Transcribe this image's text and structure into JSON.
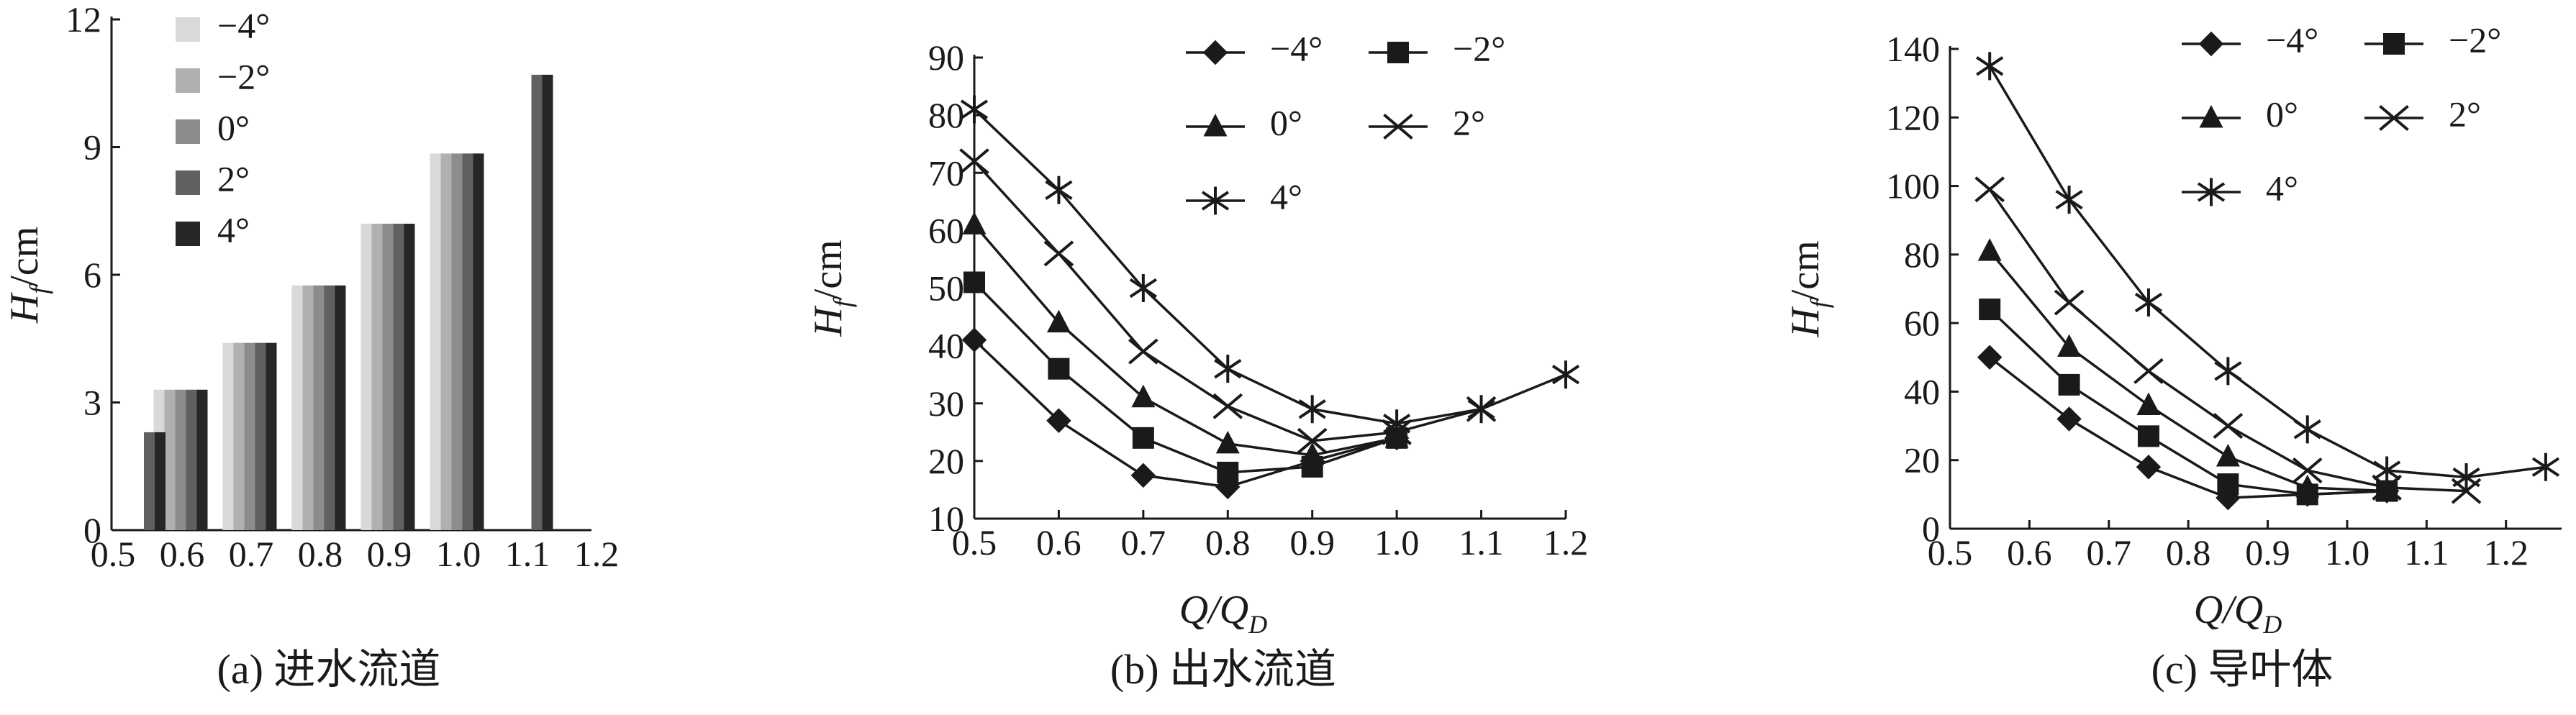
{
  "chart_data": [
    {
      "type": "bar",
      "caption": "(a) 进水流道",
      "ylabel": [
        "H",
        "f",
        "/cm"
      ],
      "categories": [
        "0.5",
        "0.6",
        "0.7",
        "0.8",
        "0.9",
        "1.0",
        "1.1",
        "1.2"
      ],
      "series": [
        {
          "name": "−4°",
          "color": "#d9d9d9",
          "values": [
            null,
            3.3,
            4.4,
            5.75,
            7.2,
            8.85,
            null,
            null
          ]
        },
        {
          "name": "−2°",
          "color": "#b0b0b0",
          "values": [
            null,
            3.3,
            4.4,
            5.75,
            7.2,
            8.85,
            null,
            null
          ]
        },
        {
          "name": "0°",
          "color": "#8c8c8c",
          "values": [
            null,
            3.3,
            4.4,
            5.75,
            7.2,
            8.85,
            null,
            null
          ]
        },
        {
          "name": "2°",
          "color": "#606060",
          "values": [
            2.3,
            3.3,
            4.4,
            5.75,
            7.2,
            8.85,
            10.7,
            null
          ]
        },
        {
          "name": "4°",
          "color": "#262626",
          "values": [
            2.3,
            3.3,
            4.4,
            5.75,
            7.2,
            8.85,
            10.7,
            null
          ]
        }
      ],
      "ylim": [
        0,
        12
      ],
      "yticks": [
        0,
        3,
        6,
        9,
        12
      ],
      "legend": "upper left"
    },
    {
      "type": "line",
      "caption": "(b) 出水流道",
      "ylabel": [
        "H",
        "f",
        "/cm"
      ],
      "xlabel": [
        "Q/Q",
        "D"
      ],
      "x": [
        0.5,
        0.6,
        0.7,
        0.8,
        0.9,
        1.0,
        1.1,
        1.2
      ],
      "series": [
        {
          "name": "−4°",
          "color": "#1a1a1a",
          "marker": "diamond",
          "values": [
            41,
            27,
            17.5,
            15.5,
            20,
            24,
            null,
            null
          ]
        },
        {
          "name": "−2°",
          "color": "#1a1a1a",
          "marker": "square",
          "values": [
            51,
            36,
            24,
            18,
            19,
            24,
            null,
            null
          ]
        },
        {
          "name": "0°",
          "color": "#1a1a1a",
          "marker": "triangle",
          "values": [
            61,
            44,
            31,
            23,
            21,
            24,
            null,
            null
          ]
        },
        {
          "name": "2°",
          "color": "#1a1a1a",
          "marker": "x",
          "values": [
            72,
            56,
            39,
            29.5,
            23.5,
            25,
            29,
            null
          ]
        },
        {
          "name": "4°",
          "color": "#1a1a1a",
          "marker": "star",
          "values": [
            81,
            67,
            50,
            36,
            29,
            26.5,
            29,
            35
          ]
        }
      ],
      "xlim": [
        0.5,
        1.2
      ],
      "xticks": [
        0.5,
        0.6,
        0.7,
        0.8,
        0.9,
        {
          "value": 1.0,
          "label": "1.0"
        },
        1.1,
        1.2
      ],
      "ylim": [
        10,
        90
      ],
      "yticks": [
        10,
        20,
        30,
        40,
        50,
        60,
        70,
        80,
        90
      ],
      "legend": "upper right"
    },
    {
      "type": "line",
      "caption": "(c) 导叶体",
      "ylabel": [
        "H",
        "f",
        "/cm"
      ],
      "xlabel": [
        "Q/Q",
        "D"
      ],
      "x": [
        0.55,
        0.65,
        0.75,
        0.85,
        0.95,
        1.05,
        1.15,
        1.25
      ],
      "series": [
        {
          "name": "−4°",
          "color": "#1a1a1a",
          "marker": "diamond",
          "values": [
            50,
            32,
            18,
            9,
            10,
            11,
            null,
            null
          ]
        },
        {
          "name": "−2°",
          "color": "#1a1a1a",
          "marker": "square",
          "values": [
            64,
            42,
            27,
            13,
            10,
            11,
            null,
            null
          ]
        },
        {
          "name": "0°",
          "color": "#1a1a1a",
          "marker": "triangle",
          "values": [
            81,
            53,
            36,
            21,
            12,
            11,
            null,
            null
          ]
        },
        {
          "name": "2°",
          "color": "#1a1a1a",
          "marker": "x",
          "values": [
            99,
            66,
            46,
            30,
            17,
            12,
            11,
            null
          ]
        },
        {
          "name": "4°",
          "color": "#1a1a1a",
          "marker": "star",
          "values": [
            135,
            96,
            66,
            46,
            29,
            17,
            15,
            18
          ]
        }
      ],
      "xlim": [
        0.5,
        1.27
      ],
      "xticks": [
        0.5,
        0.6,
        0.7,
        0.8,
        0.9,
        {
          "value": 1.0,
          "label": "1.0"
        },
        1.1,
        1.2
      ],
      "ylim": [
        0,
        140
      ],
      "yticks": [
        0,
        20,
        40,
        60,
        80,
        100,
        120,
        140
      ],
      "legend": "upper right"
    }
  ]
}
